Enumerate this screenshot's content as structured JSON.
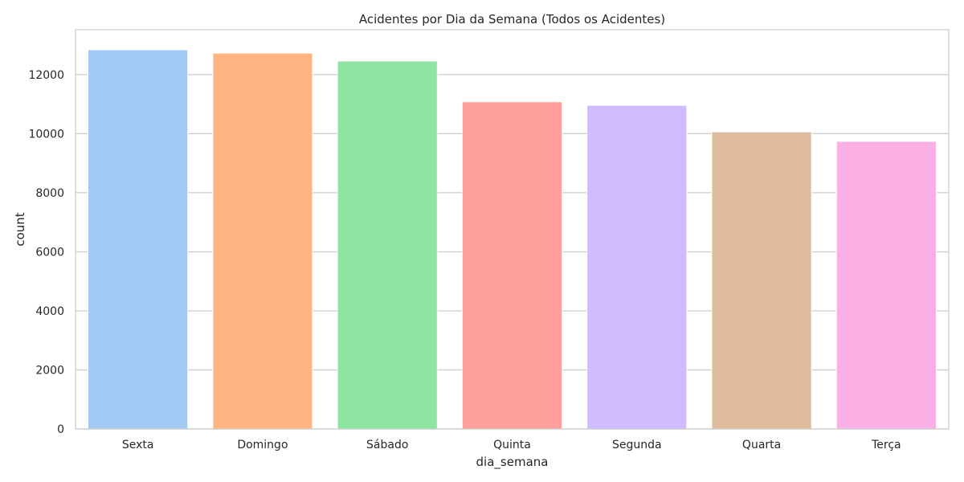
{
  "chart_data": {
    "type": "bar",
    "title": "Acidentes por Dia da Semana (Todos os Acidentes)",
    "xlabel": "dia_semana",
    "ylabel": "count",
    "categories": [
      "Sexta",
      "Domingo",
      "Sábado",
      "Quinta",
      "Segunda",
      "Quarta",
      "Terça"
    ],
    "values": [
      12840,
      12730,
      12460,
      11080,
      10960,
      10060,
      9740
    ],
    "colors": [
      "#a1c9f4",
      "#ffb482",
      "#8de5a1",
      "#ff9f9b",
      "#d0bbff",
      "#debb9b",
      "#fab0e4"
    ],
    "ylim": [
      0,
      13520
    ],
    "yticks": [
      0,
      2000,
      4000,
      6000,
      8000,
      10000,
      12000
    ],
    "grid": true,
    "gridcolor": "#cccccc"
  }
}
